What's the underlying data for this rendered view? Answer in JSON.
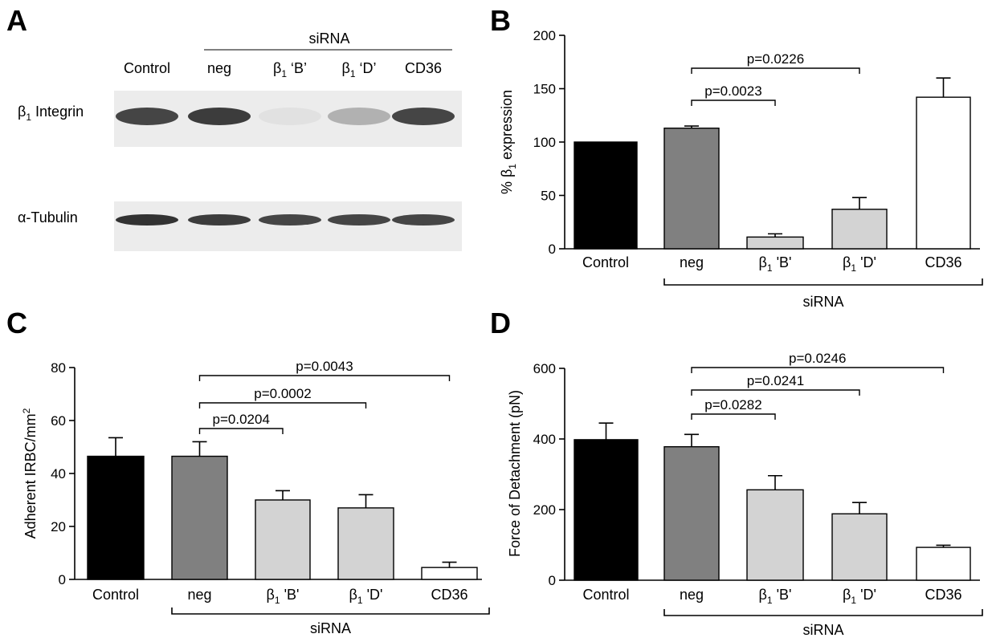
{
  "western_blot": {
    "panel": "A",
    "group_label": "siRNA",
    "lane_labels": [
      {
        "text": "Control",
        "sub": ""
      },
      {
        "text": "neg",
        "sub": ""
      },
      {
        "text": "β",
        "sub": "1",
        "tail": " ‘B’"
      },
      {
        "text": "β",
        "sub": "1",
        "tail": " ‘D’"
      },
      {
        "text": "CD36",
        "sub": ""
      }
    ],
    "row_labels": [
      {
        "text": "β",
        "sub": "1",
        "tail": " Integrin"
      },
      {
        "text": "α-Tubulin",
        "sub": "",
        "tail": ""
      }
    ],
    "band_intensity_integrin": [
      0.85,
      0.9,
      0.05,
      0.3,
      0.85
    ],
    "band_intensity_tubulin": [
      0.95,
      0.9,
      0.85,
      0.85,
      0.85
    ]
  },
  "chart_data": [
    {
      "panel": "B",
      "type": "bar",
      "categories": [
        "Control",
        "neg",
        "β1 'B'",
        "β1 'D'",
        "CD36"
      ],
      "values": [
        100,
        113,
        11,
        37,
        142
      ],
      "errors": [
        0,
        2,
        3,
        11,
        18
      ],
      "colors": [
        "#000000",
        "#808080",
        "#d3d3d3",
        "#d3d3d3",
        "#ffffff"
      ],
      "ylabel": "% β1 expression",
      "ylim": [
        0,
        200
      ],
      "yticks": [
        0,
        50,
        100,
        150,
        200
      ],
      "group_label": "siRNA",
      "group_span": [
        1,
        4
      ],
      "significance": [
        {
          "from": 1,
          "to": 2,
          "label": "p=0.0023"
        },
        {
          "from": 1,
          "to": 3,
          "label": "p=0.0226"
        }
      ]
    },
    {
      "panel": "C",
      "type": "bar",
      "categories": [
        "Control",
        "neg",
        "β1 'B'",
        "β1 'D'",
        "CD36"
      ],
      "values": [
        46.5,
        46.5,
        30,
        27,
        4.5
      ],
      "errors": [
        7,
        5.5,
        3.5,
        5,
        2
      ],
      "colors": [
        "#000000",
        "#808080",
        "#d3d3d3",
        "#d3d3d3",
        "#ffffff"
      ],
      "ylabel": "Adherent IRBC/mm2",
      "ylim": [
        0,
        80
      ],
      "yticks": [
        0,
        20,
        40,
        60,
        80
      ],
      "group_label": "siRNA",
      "group_span": [
        1,
        4
      ],
      "significance": [
        {
          "from": 1,
          "to": 2,
          "label": "p=0.0204"
        },
        {
          "from": 1,
          "to": 3,
          "label": "p=0.0002"
        },
        {
          "from": 1,
          "to": 4,
          "label": "p=0.0043"
        }
      ]
    },
    {
      "panel": "D",
      "type": "bar",
      "categories": [
        "Control",
        "neg",
        "β1 'B'",
        "β1 'D'",
        "CD36"
      ],
      "values": [
        398,
        378,
        256,
        188,
        93
      ],
      "errors": [
        47,
        35,
        40,
        32,
        6
      ],
      "colors": [
        "#000000",
        "#808080",
        "#d3d3d3",
        "#d3d3d3",
        "#ffffff"
      ],
      "ylabel": "Force of Detachment (pN)",
      "ylim": [
        0,
        600
      ],
      "yticks": [
        0,
        200,
        400,
        600
      ],
      "group_label": "siRNA",
      "group_span": [
        1,
        4
      ],
      "significance": [
        {
          "from": 1,
          "to": 2,
          "label": "p=0.0282"
        },
        {
          "from": 1,
          "to": 3,
          "label": "p=0.0241"
        },
        {
          "from": 1,
          "to": 4,
          "label": "p=0.0246"
        }
      ]
    }
  ]
}
